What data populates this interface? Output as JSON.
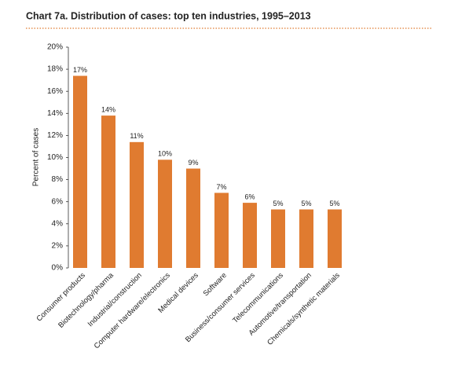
{
  "chart_data": {
    "type": "bar",
    "title": "Chart 7a. Distribution of cases: top ten industries, 1995–2013",
    "y_label": "Percent of cases",
    "categories": [
      "Consumer products",
      "Biotechnology/pharma",
      "Industrial/construction",
      "Computer hardware/electronics",
      "Medical devices",
      "Software",
      "Business/consumer services",
      "Telecommunications",
      "Automotive/transportation",
      "Chemicals/synthetic materials"
    ],
    "values": [
      17.4,
      13.8,
      11.4,
      9.8,
      9.0,
      6.8,
      5.9,
      5.3,
      5.3,
      5.3
    ],
    "value_labels": [
      "17%",
      "14%",
      "11%",
      "10%",
      "9%",
      "7%",
      "6%",
      "5%",
      "5%",
      "5%"
    ],
    "color": "#e07b30",
    "ylim": [
      0,
      20
    ],
    "yticks": [
      {
        "value": 0,
        "label": "0%"
      },
      {
        "value": 2,
        "label": "2%"
      },
      {
        "value": 4,
        "label": "4%"
      },
      {
        "value": 6,
        "label": "6%"
      },
      {
        "value": 8,
        "label": "8%"
      },
      {
        "value": 10,
        "label": "10%"
      },
      {
        "value": 12,
        "label": "12%"
      },
      {
        "value": 14,
        "label": "14%"
      },
      {
        "value": 16,
        "label": "16%"
      },
      {
        "value": 18,
        "label": "18%"
      },
      {
        "value": 20,
        "label": "20%"
      }
    ],
    "grid": false
  }
}
